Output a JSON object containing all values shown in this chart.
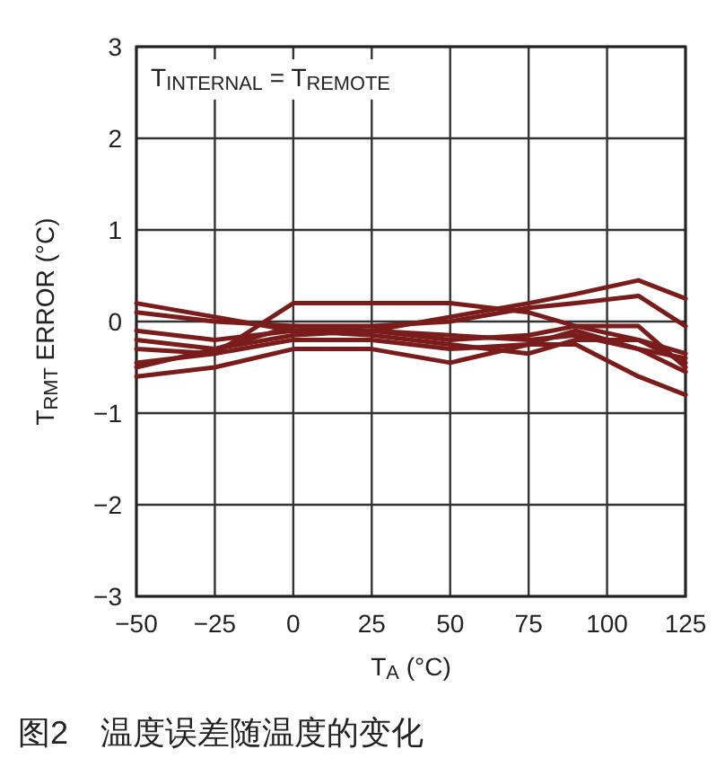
{
  "chart_data": {
    "type": "line",
    "xlabel": "T$_{A}$ (°C)",
    "ylabel": "T$_{RMT}$ ERROR (°C)",
    "annotations": [
      "T$_{INTERNAL}$ = T$_{REMOTE}$",
      "图2　温度误差随温度的变化"
    ],
    "x": [
      -50,
      -25,
      0,
      25,
      50,
      75,
      90,
      110,
      125
    ],
    "series": [
      {
        "color": "#7b1c1c",
        "values": [
          0.2,
          0.05,
          -0.1,
          -0.1,
          0.05,
          0.2,
          0.3,
          0.45,
          0.25
        ]
      },
      {
        "color": "#7b1c1c",
        "values": [
          0.1,
          0.0,
          -0.05,
          -0.05,
          0.0,
          0.15,
          0.2,
          0.28,
          -0.05
        ]
      },
      {
        "color": "#7b1c1c",
        "values": [
          -0.6,
          -0.5,
          -0.3,
          -0.3,
          -0.45,
          -0.25,
          -0.25,
          -0.6,
          -0.8
        ]
      },
      {
        "color": "#7b1c1c",
        "values": [
          -0.45,
          -0.35,
          0.2,
          0.2,
          0.2,
          0.1,
          -0.05,
          -0.05,
          -0.5
        ]
      },
      {
        "color": "#7b1c1c",
        "values": [
          -0.1,
          -0.2,
          -0.1,
          -0.15,
          -0.25,
          -0.35,
          -0.2,
          -0.2,
          -0.45
        ]
      },
      {
        "color": "#7b1c1c",
        "values": [
          -0.3,
          -0.35,
          -0.2,
          -0.2,
          -0.3,
          -0.25,
          -0.1,
          -0.3,
          -0.55
        ]
      },
      {
        "color": "#7b1c1c",
        "values": [
          -0.5,
          -0.3,
          -0.05,
          -0.1,
          -0.15,
          -0.2,
          -0.15,
          -0.3,
          -0.4
        ]
      },
      {
        "color": "#7b1c1c",
        "values": [
          -0.2,
          -0.3,
          -0.15,
          -0.1,
          -0.2,
          -0.15,
          -0.05,
          -0.2,
          -0.35
        ]
      }
    ],
    "xlim": [
      -50,
      125
    ],
    "ylim": [
      -3,
      3
    ],
    "xticks": [
      {
        "value": -50,
        "label": "−50"
      },
      {
        "value": -25,
        "label": "−25"
      },
      0,
      25,
      50,
      75,
      100,
      125
    ],
    "yticks": [
      {
        "value": -3,
        "label": "−3"
      },
      {
        "value": -2,
        "label": "−2"
      },
      {
        "value": -1,
        "label": "−1"
      },
      0,
      1,
      2,
      3
    ],
    "grid": true,
    "marker": "none",
    "line_style": "solid"
  }
}
